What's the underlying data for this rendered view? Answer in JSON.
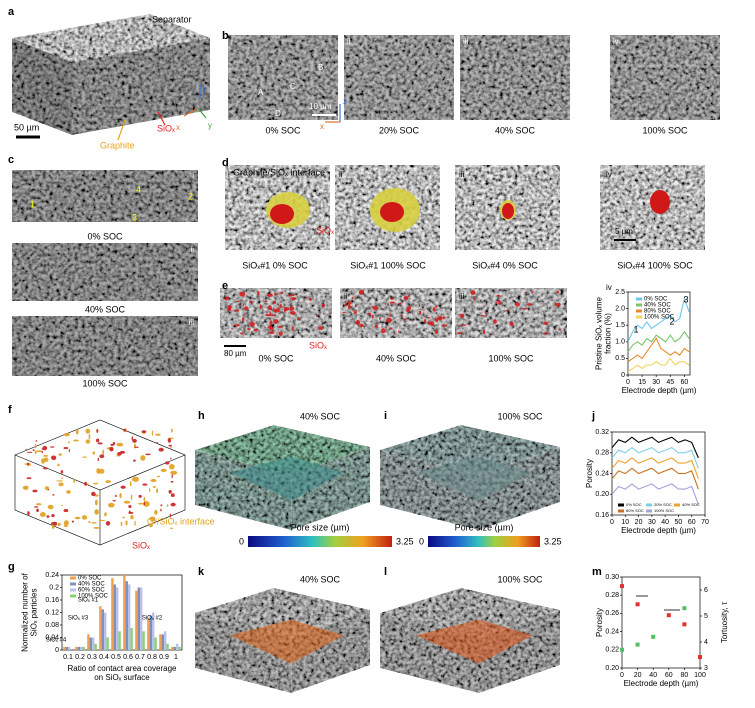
{
  "panel_labels": [
    "a",
    "b",
    "c",
    "d",
    "e",
    "f",
    "g",
    "h",
    "i",
    "j",
    "k",
    "l",
    "m"
  ],
  "a": {
    "separator": "Separator",
    "scale": "50 µm",
    "graphite": "Graphite",
    "siox": "SiOₓ",
    "axes": [
      "z",
      "x",
      "y"
    ]
  },
  "b": {
    "roman": [
      "i",
      "ii",
      "iii",
      "iv"
    ],
    "particles": [
      "A",
      "B",
      "C",
      "D"
    ],
    "scale": "10 µm",
    "axes": [
      "z",
      "x"
    ],
    "captions": [
      "0% SOC",
      "20% SOC",
      "40% SOC",
      "100% SOC"
    ]
  },
  "c": {
    "roman": [
      "i",
      "ii",
      "iii"
    ],
    "particles": [
      "1",
      "2",
      "3",
      "4"
    ],
    "captions": [
      "0% SOC",
      "40% SOC",
      "100% SOC"
    ]
  },
  "d": {
    "roman": [
      "i",
      "ii",
      "iii",
      "iv"
    ],
    "interface": "Graphite/SiOₓ interface",
    "siox": "SiOₓ",
    "scale": "5 µm",
    "captions": [
      "SiOₓ#1 0% SOC",
      "SiOₓ#1 100% SOC",
      "SiOₓ#4 0% SOC",
      "SiOₓ#4 100% SOC"
    ]
  },
  "e": {
    "roman": [
      "i",
      "ii",
      "iii",
      "iv"
    ],
    "scale": "80 µm",
    "siox": "SiOₓ",
    "captions": [
      "0% SOC",
      "40% SOC",
      "100% SOC"
    ]
  },
  "f": {
    "interface": "Gr/SiOₓ interface",
    "siox": "SiOₓ"
  },
  "h": {
    "caption": "40% SOC",
    "colorbar_title": "Pore size (µm)",
    "colorbar_ticks": [
      0,
      3.25
    ]
  },
  "i": {
    "caption": "100% SOC",
    "colorbar_title": "Pore size (µm)",
    "colorbar_ticks": [
      0,
      3.25
    ]
  },
  "k": {
    "caption": "40% SOC"
  },
  "l": {
    "caption": "100% SOC"
  },
  "chart_data": [
    {
      "type": "line",
      "x_label": "Electrode depth (µm)",
      "y_label": [
        "Pristine SiOₓ volume",
        "fraction (%)"
      ],
      "x": [
        0,
        5,
        10,
        15,
        20,
        25,
        30,
        35,
        40,
        45,
        50,
        55,
        60,
        65
      ],
      "xlim": [
        0,
        66
      ],
      "xticks": [
        0,
        15,
        30,
        45,
        60
      ],
      "ylim": [
        0,
        2.5
      ],
      "yticks": [
        0,
        0.5,
        {
          "value": 1,
          "label": "1.0"
        },
        1.5,
        {
          "value": 2,
          "label": "2.0"
        },
        2.5
      ],
      "series": [
        {
          "name": "0% SOC",
          "color": "#6ec6f0",
          "values": [
            1.0,
            1.3,
            1.5,
            1.4,
            1.6,
            1.4,
            1.5,
            1.6,
            1.7,
            1.8,
            1.6,
            1.7,
            2.3,
            1.9
          ]
        },
        {
          "name": "40% SOC",
          "color": "#7cc36b",
          "values": [
            0.7,
            0.9,
            1.0,
            0.9,
            1.1,
            1.0,
            1.2,
            1.1,
            1.0,
            1.2,
            1.0,
            1.1,
            1.3,
            1.1
          ]
        },
        {
          "name": "80% SOC",
          "color": "#e8892c",
          "values": [
            0.4,
            0.5,
            0.6,
            0.5,
            0.7,
            0.9,
            1.1,
            0.8,
            0.7,
            0.6,
            0.7,
            0.6,
            0.8,
            0.7
          ]
        },
        {
          "name": "100% SOC",
          "color": "#f2d35a",
          "values": [
            0.1,
            0.2,
            0.3,
            0.2,
            0.3,
            0.3,
            0.4,
            0.3,
            0.3,
            0.5,
            0.3,
            0.4,
            0.4,
            0.3
          ]
        }
      ],
      "annotations": [
        "1",
        "2",
        "3"
      ]
    },
    {
      "type": "line",
      "x_label": "Electrode depth (µm)",
      "y_label": "Porosity",
      "x": [
        0,
        5,
        10,
        15,
        20,
        25,
        30,
        35,
        40,
        45,
        50,
        55,
        60,
        65
      ],
      "xlim": [
        0,
        70
      ],
      "xticks": [
        0,
        10,
        20,
        30,
        40,
        50,
        60,
        70
      ],
      "ylim": [
        0.16,
        0.32
      ],
      "yticks": [
        0.16,
        {
          "value": 0.2,
          "label": "0.20"
        },
        0.24,
        0.28,
        0.32
      ],
      "series": [
        {
          "name": "0% SOC",
          "color": "#000000",
          "values": [
            0.29,
            0.305,
            0.3,
            0.31,
            0.3,
            0.305,
            0.31,
            0.3,
            0.305,
            0.31,
            0.3,
            0.305,
            0.3,
            0.27
          ]
        },
        {
          "name": "20% SOC",
          "color": "#7fcfe8",
          "values": [
            0.27,
            0.285,
            0.28,
            0.29,
            0.28,
            0.285,
            0.29,
            0.28,
            0.285,
            0.29,
            0.28,
            0.28,
            0.285,
            0.25
          ]
        },
        {
          "name": "40% SOC",
          "color": "#f0a030",
          "values": [
            0.25,
            0.265,
            0.26,
            0.27,
            0.26,
            0.265,
            0.27,
            0.26,
            0.265,
            0.27,
            0.26,
            0.26,
            0.265,
            0.23
          ]
        },
        {
          "name": "60% SOC",
          "color": "#c87020",
          "values": [
            0.23,
            0.245,
            0.24,
            0.25,
            0.24,
            0.245,
            0.25,
            0.24,
            0.245,
            0.25,
            0.24,
            0.24,
            0.245,
            0.21
          ]
        },
        {
          "name": "100% SOC",
          "color": "#a8a0d8",
          "values": [
            0.2,
            0.215,
            0.21,
            0.22,
            0.21,
            0.215,
            0.22,
            0.21,
            0.215,
            0.22,
            0.21,
            0.21,
            0.215,
            0.18
          ]
        }
      ]
    },
    {
      "type": "bar",
      "x_label": [
        "Ratio of contact area coverage",
        "on SiOₓ surface"
      ],
      "y_label": [
        "Normalized number of",
        "SiOₓ particles"
      ],
      "categories": [
        "0.1",
        "0.2",
        "0.3",
        "0.4",
        "0.5",
        "0.6",
        "0.7",
        "0.8",
        "0.9",
        "1"
      ],
      "ylim": [
        0,
        0.24
      ],
      "yticks": [
        0,
        0.04,
        0.08,
        0.12,
        0.16,
        0.2,
        0.24
      ],
      "series": [
        {
          "name": "0% SOC",
          "color": "#f0a050",
          "values": [
            0.01,
            0.01,
            0.05,
            0.14,
            0.23,
            0.24,
            0.19,
            0.1,
            0.05,
            0.01
          ]
        },
        {
          "name": "40% SOC",
          "color": "#8090b8",
          "values": [
            0.01,
            0.01,
            0.04,
            0.13,
            0.21,
            0.22,
            0.2,
            0.11,
            0.05,
            0.01
          ]
        },
        {
          "name": "60% SOC",
          "color": "#b8c0ec",
          "values": [
            0.01,
            0.01,
            0.04,
            0.12,
            0.2,
            0.21,
            0.2,
            0.12,
            0.06,
            0.02
          ]
        },
        {
          "name": "100% SOC",
          "color": "#8cd070",
          "values": [
            0,
            0.01,
            0.02,
            0.04,
            0.06,
            0.07,
            0.06,
            0.04,
            0.02,
            0.01
          ]
        }
      ],
      "annotations": [
        "SiOₓ #4",
        "SiOₓ #3",
        "SiOₓ #1",
        "SiOₓ #2"
      ]
    },
    {
      "type": "scatter",
      "x_label": "Electrode depth (µm)",
      "y_label": "Porosity",
      "y2_label": "Tortuosity, τ",
      "xlim": [
        0,
        100
      ],
      "xticks": [
        0,
        20,
        40,
        60,
        80,
        100
      ],
      "ylim": [
        0.2,
        0.3
      ],
      "yticks": [
        {
          "value": 0.2,
          "label": "0.20"
        },
        0.22,
        0.24,
        0.26,
        0.28,
        {
          "value": 0.3,
          "label": "0.30"
        }
      ],
      "y2lim": [
        3,
        6.5
      ],
      "y2ticks": [
        3,
        4,
        5,
        6
      ],
      "series": [
        {
          "color": "#e03030",
          "x": [
            0,
            20,
            60,
            80,
            100
          ],
          "values": [
            0.29,
            0.27,
            0.258,
            0.248,
            0.212
          ]
        },
        {
          "color": "#50c060",
          "axis": "y2",
          "x": [
            0,
            20,
            40,
            80
          ],
          "values": [
            3.7,
            3.9,
            4.2,
            5.3
          ]
        }
      ]
    }
  ]
}
